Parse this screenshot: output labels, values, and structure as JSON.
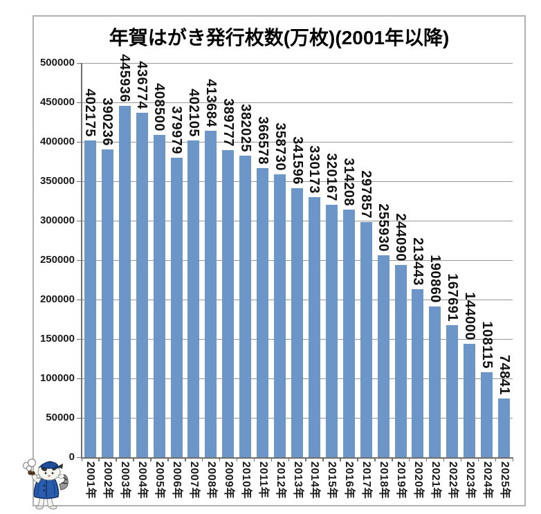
{
  "chart_data": {
    "type": "bar",
    "title": "年賀はがき発行枚数(万枚)(2001年以降)",
    "categories": [
      "2001年",
      "2002年",
      "2003年",
      "2004年",
      "2005年",
      "2006年",
      "2007年",
      "2008年",
      "2009年",
      "2010年",
      "2011年",
      "2012年",
      "2013年",
      "2014年",
      "2015年",
      "2016年",
      "2017年",
      "2018年",
      "2019年",
      "2020年",
      "2021年",
      "2022年",
      "2023年",
      "2024年",
      "2025年"
    ],
    "values": [
      402175,
      390236,
      445936,
      436774,
      408500,
      379979,
      402105,
      413684,
      389777,
      382025,
      366578,
      358730,
      341596,
      330173,
      320167,
      314208,
      297857,
      255930,
      244090,
      213443,
      190860,
      167691,
      144000,
      108115,
      74841
    ],
    "xlabel": "",
    "ylabel": "",
    "ylim": [
      0,
      500000
    ],
    "ytick_step": 50000,
    "ytick_labels": [
      "0",
      "50000",
      "100000",
      "150000",
      "200000",
      "250000",
      "300000",
      "350000",
      "400000",
      "450000",
      "500000"
    ],
    "grid": true,
    "legend": "none",
    "data_labels": true,
    "label_rotation_deg": 90,
    "bar_color": "#6d96c8",
    "gridline_color": "#969696",
    "axis_color": "#6e6e6e",
    "frame_border_color": "#b0b0b0"
  },
  "mascot": {
    "description": "cat mascot in blue cap and vest smoking a pipe"
  }
}
